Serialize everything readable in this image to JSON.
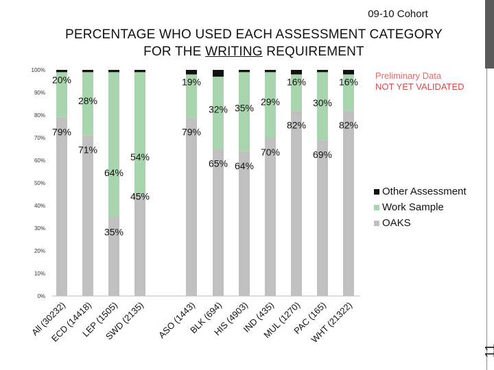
{
  "cohort": "09-10 Cohort",
  "title_part1": "PERCENTAGE WHO USED EACH ASSESSMENT CATEGORY",
  "title_part2_prefix": "FOR THE ",
  "title_part2_underlined": "WRITING",
  "title_part2_suffix": " REQUIREMENT",
  "note_line1": "Preliminary Data",
  "note_line2": "NOT YET VALIDATED",
  "page_number": "11",
  "colors": {
    "oaks": "#c0c0c0",
    "work_sample": "#a8d5ad",
    "other": "#111111",
    "note_red": "#d24b4b"
  },
  "chart_data": {
    "type": "bar",
    "stacked": true,
    "categories": [
      "All (30232)",
      "ECD (14418)",
      "LEP (1505)",
      "SWD (2135)",
      "ASO (1443)",
      "BLK (694)",
      "HIS (4903)",
      "IND (435)",
      "MUL (1270)",
      "PAC (165)",
      "WHT (21322)"
    ],
    "series": [
      {
        "name": "OAKS",
        "values": [
          79,
          71,
          35,
          45,
          79,
          65,
          64,
          70,
          82,
          69,
          82
        ]
      },
      {
        "name": "Work Sample",
        "values": [
          20,
          28,
          64,
          54,
          19,
          32,
          35,
          29,
          16,
          30,
          16
        ]
      },
      {
        "name": "Other Assessment",
        "values": [
          1,
          1,
          1,
          1,
          2,
          3,
          1,
          1,
          2,
          1,
          2
        ]
      }
    ],
    "data_labels": {
      "OAKS": [
        "79%",
        "71%",
        "35%",
        "45%",
        "79%",
        "65%",
        "64%",
        "70%",
        "82%",
        "69%",
        "82%"
      ],
      "Work Sample": [
        "20%",
        "28%",
        "64%",
        "54%",
        "19%",
        "32%",
        "35%",
        "29%",
        "16%",
        "30%",
        "16%"
      ]
    },
    "y_ticks": [
      "0%",
      "10%",
      "20%",
      "30%",
      "40%",
      "50%",
      "60%",
      "70%",
      "80%",
      "90%",
      "100%"
    ],
    "ylim": [
      0,
      100
    ],
    "legend": [
      "Other Assessment",
      "Work Sample",
      "OAKS"
    ],
    "legend_position": "right",
    "grid": false
  }
}
